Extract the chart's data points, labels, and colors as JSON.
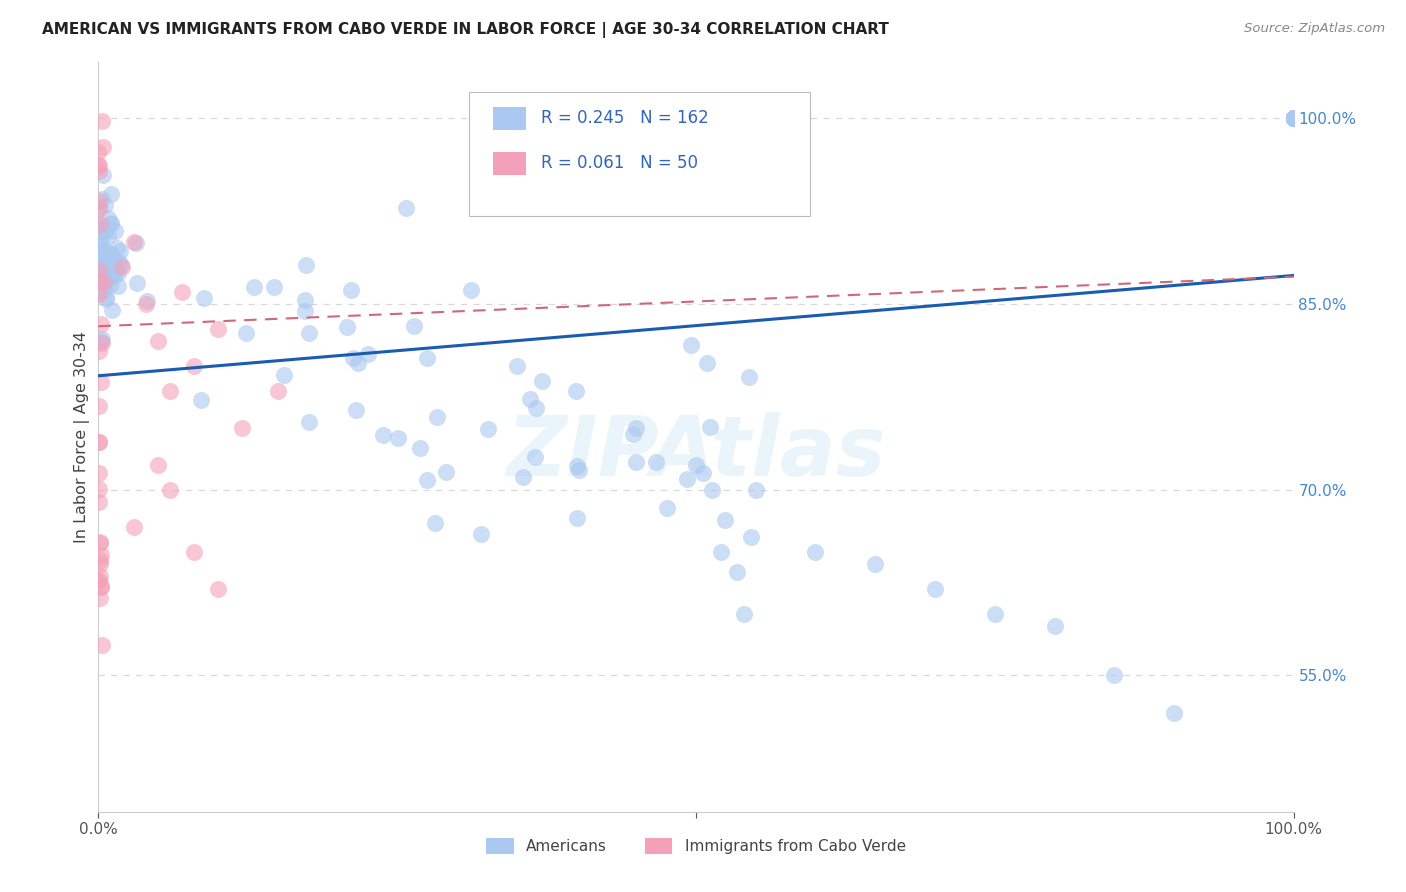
{
  "title": "AMERICAN VS IMMIGRANTS FROM CABO VERDE IN LABOR FORCE | AGE 30-34 CORRELATION CHART",
  "source": "Source: ZipAtlas.com",
  "ylabel": "In Labor Force | Age 30-34",
  "R_american": 0.245,
  "N_american": 162,
  "R_caboverde": 0.061,
  "N_caboverde": 50,
  "american_color": "#aac8f0",
  "caboverde_color": "#f4a0b8",
  "trendline_american_color": "#1a5cb0",
  "trendline_caboverde_color": "#d06878",
  "xmin": 0.0,
  "xmax": 1.0,
  "ymin": 0.44,
  "ymax": 1.045,
  "right_yticks": [
    0.55,
    0.7,
    0.85,
    1.0
  ],
  "right_yticklabels": [
    "55.0%",
    "70.0%",
    "85.0%",
    "100.0%"
  ],
  "grid_color": "#d8d8d8",
  "background_color": "#ffffff",
  "am_trend_x0": 0.0,
  "am_trend_y0": 0.792,
  "am_trend_x1": 1.0,
  "am_trend_y1": 0.873,
  "cv_trend_x0": 0.0,
  "cv_trend_y0": 0.832,
  "cv_trend_x1": 1.0,
  "cv_trend_y1": 0.872
}
